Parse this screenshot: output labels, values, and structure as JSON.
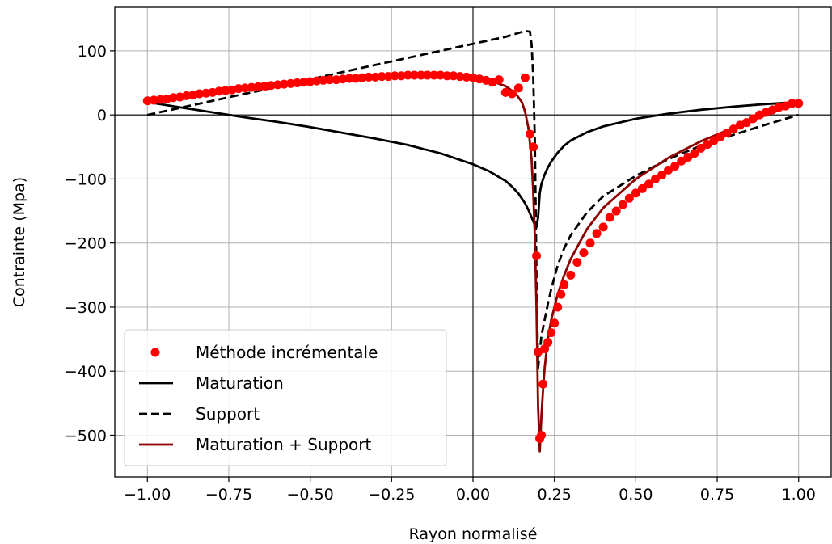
{
  "chart_data": {
    "type": "line",
    "title": "",
    "xlabel": "Rayon normalisé",
    "ylabel": "Contrainte (Mpa)",
    "xlim": [
      -1.1,
      1.1
    ],
    "ylim": [
      -565,
      168
    ],
    "xticks": [
      -1.0,
      -0.75,
      -0.5,
      -0.25,
      0.0,
      0.25,
      0.5,
      0.75,
      1.0
    ],
    "xtick_labels": [
      "−1.00",
      "−0.75",
      "−0.50",
      "−0.25",
      "0.00",
      "0.25",
      "0.50",
      "0.75",
      "1.00"
    ],
    "yticks": [
      100,
      0,
      -100,
      -200,
      -300,
      -400,
      -500
    ],
    "ytick_labels": [
      "100",
      "0",
      "−100",
      "−200",
      "−300",
      "−400",
      "−500"
    ],
    "grid": true,
    "zero_lines": true,
    "legend_position": "lower-left",
    "series": [
      {
        "name": "Méthode incrémentale",
        "style": "markers",
        "color": "#ff0000",
        "x": [
          -1.0,
          -0.98,
          -0.96,
          -0.94,
          -0.92,
          -0.9,
          -0.88,
          -0.86,
          -0.84,
          -0.82,
          -0.8,
          -0.78,
          -0.76,
          -0.74,
          -0.72,
          -0.7,
          -0.68,
          -0.66,
          -0.64,
          -0.62,
          -0.6,
          -0.58,
          -0.56,
          -0.54,
          -0.52,
          -0.5,
          -0.48,
          -0.46,
          -0.44,
          -0.42,
          -0.4,
          -0.38,
          -0.36,
          -0.34,
          -0.32,
          -0.3,
          -0.28,
          -0.26,
          -0.24,
          -0.22,
          -0.2,
          -0.18,
          -0.16,
          -0.14,
          -0.12,
          -0.1,
          -0.08,
          -0.06,
          -0.04,
          -0.02,
          0.0,
          0.02,
          0.04,
          0.06,
          0.08,
          0.1,
          0.12,
          0.14,
          0.16,
          0.175,
          0.185,
          0.195,
          0.2,
          0.205,
          0.21,
          0.215,
          0.22,
          0.23,
          0.24,
          0.25,
          0.26,
          0.27,
          0.28,
          0.3,
          0.32,
          0.34,
          0.36,
          0.38,
          0.4,
          0.42,
          0.44,
          0.46,
          0.48,
          0.5,
          0.52,
          0.54,
          0.56,
          0.58,
          0.6,
          0.62,
          0.64,
          0.66,
          0.68,
          0.7,
          0.72,
          0.74,
          0.76,
          0.78,
          0.8,
          0.82,
          0.84,
          0.86,
          0.88,
          0.9,
          0.92,
          0.94,
          0.96,
          0.98,
          1.0
        ],
        "y": [
          22,
          23,
          24,
          25,
          27,
          28,
          30,
          31,
          33,
          34,
          35,
          37,
          38,
          39,
          41,
          42,
          43,
          44,
          45,
          46,
          47,
          48,
          49,
          50,
          51,
          52,
          53,
          54,
          55,
          55,
          56,
          57,
          57,
          58,
          59,
          59,
          60,
          60,
          61,
          61,
          62,
          62,
          62,
          62,
          62,
          62,
          61,
          61,
          60,
          59,
          58,
          56,
          54,
          51,
          55,
          35,
          33,
          42,
          58,
          -30,
          -50,
          -220,
          -370,
          -505,
          -500,
          -420,
          -365,
          -355,
          -340,
          -325,
          -300,
          -280,
          -265,
          -250,
          -230,
          -215,
          -200,
          -185,
          -175,
          -160,
          -150,
          -140,
          -130,
          -122,
          -115,
          -108,
          -100,
          -94,
          -86,
          -80,
          -72,
          -66,
          -60,
          -52,
          -46,
          -40,
          -34,
          -28,
          -22,
          -16,
          -12,
          -6,
          0,
          4,
          8,
          12,
          14,
          18,
          18
        ]
      },
      {
        "name": "Maturation",
        "style": "solid",
        "color": "#000000",
        "x": [
          -1.0,
          -0.9,
          -0.8,
          -0.7,
          -0.6,
          -0.5,
          -0.4,
          -0.3,
          -0.2,
          -0.1,
          0.0,
          0.05,
          0.1,
          0.12,
          0.14,
          0.16,
          0.17,
          0.18,
          0.19,
          0.195,
          0.2,
          0.205,
          0.21,
          0.22,
          0.23,
          0.24,
          0.26,
          0.28,
          0.3,
          0.35,
          0.4,
          0.5,
          0.6,
          0.7,
          0.8,
          0.9,
          1.0
        ],
        "y": [
          20,
          12,
          4,
          -4,
          -11,
          -19,
          -28,
          -37,
          -47,
          -60,
          -77,
          -88,
          -103,
          -112,
          -123,
          -138,
          -148,
          -160,
          -172,
          -175,
          -160,
          -122,
          -108,
          -93,
          -82,
          -73,
          -59,
          -48,
          -40,
          -27,
          -18,
          -6,
          2,
          8,
          13,
          17,
          20
        ]
      },
      {
        "name": "Support",
        "style": "dashed",
        "color": "#000000",
        "x": [
          -1.0,
          -0.8,
          -0.6,
          -0.4,
          -0.2,
          0.0,
          0.1,
          0.14,
          0.16,
          0.175,
          0.18,
          0.185,
          0.19,
          0.195,
          0.2,
          0.205,
          0.21,
          0.22,
          0.23,
          0.24,
          0.26,
          0.28,
          0.3,
          0.35,
          0.4,
          0.5,
          0.6,
          0.7,
          0.8,
          0.9,
          1.0
        ],
        "y": [
          0,
          22,
          44,
          67,
          89,
          111,
          122,
          128,
          131,
          130,
          110,
          60,
          -40,
          -250,
          -395,
          -370,
          -345,
          -320,
          -295,
          -272,
          -235,
          -208,
          -188,
          -152,
          -127,
          -95,
          -69,
          -48,
          -31,
          -15,
          0
        ]
      },
      {
        "name": "Maturation + Support",
        "style": "solid",
        "color": "#8b0000",
        "x": [
          -1.0,
          -0.8,
          -0.6,
          -0.4,
          -0.2,
          -0.1,
          0.0,
          0.05,
          0.1,
          0.13,
          0.15,
          0.16,
          0.17,
          0.18,
          0.185,
          0.19,
          0.195,
          0.2,
          0.205,
          0.21,
          0.215,
          0.22,
          0.23,
          0.24,
          0.26,
          0.28,
          0.3,
          0.35,
          0.4,
          0.5,
          0.6,
          0.7,
          0.8,
          0.9,
          1.0
        ],
        "y": [
          20,
          33,
          45,
          55,
          61,
          61,
          58,
          54,
          45,
          34,
          20,
          5,
          -20,
          -70,
          -120,
          -190,
          -300,
          -455,
          -525,
          -470,
          -430,
          -395,
          -350,
          -320,
          -280,
          -250,
          -225,
          -178,
          -145,
          -100,
          -67,
          -41,
          -20,
          0,
          20
        ]
      }
    ]
  }
}
